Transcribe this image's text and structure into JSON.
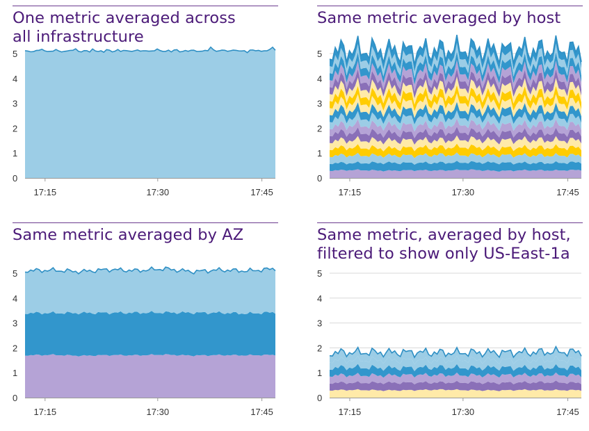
{
  "chart_data": [
    {
      "type": "area",
      "title": "One metric averaged across all infrastructure",
      "x_ticks": [
        "17:15",
        "17:30",
        "17:45"
      ],
      "y_ticks": [
        0,
        1,
        2,
        3,
        4,
        5
      ],
      "ylim": [
        0,
        5.4
      ],
      "stacked": true,
      "grid": true,
      "series": [
        {
          "color": "#9ccde6",
          "values": [
            5.08,
            5.12,
            5.05,
            5.15,
            5.1,
            5.18,
            5.06,
            5.12,
            5.09,
            5.16,
            5.04,
            5.1,
            5.14,
            5.08,
            5.2,
            5.07,
            5.11,
            5.13,
            5.05,
            5.17,
            5.09,
            5.12,
            5.06,
            5.15,
            5.1,
            5.08,
            5.18,
            5.05,
            5.13,
            5.11,
            5.09,
            5.16,
            5.07,
            5.12,
            5.1,
            5.14,
            5.06,
            5.19,
            5.08,
            5.11,
            5.13,
            5.05,
            5.17,
            5.1,
            5.09,
            5.12,
            5.07,
            5.15,
            5.11,
            5.08,
            5.13,
            5.06,
            5.3,
            5.09,
            5.12,
            5.1,
            5.14,
            5.07,
            5.18,
            5.11,
            5.08,
            5.13,
            5.05,
            5.16,
            5.1,
            5.12,
            5.09,
            5.15,
            5.07,
            5.28,
            5.11
          ]
        }
      ]
    },
    {
      "type": "area",
      "title": "Same metric averaged by host",
      "x_ticks": [
        "17:15",
        "17:30",
        "17:45"
      ],
      "y_ticks": [
        0,
        1,
        2,
        3,
        4,
        5
      ],
      "ylim": [
        0,
        5.4
      ],
      "stacked": true,
      "grid": true,
      "series": [
        {
          "color": "#b5a3d6",
          "values": [
            0.3,
            0.32,
            0.29,
            0.31,
            0.3,
            0.33,
            0.28,
            0.31,
            0.3,
            0.32
          ]
        },
        {
          "color": "#3296cc",
          "values": [
            0.3,
            0.28,
            0.32,
            0.29,
            0.31,
            0.3,
            0.33,
            0.29,
            0.3,
            0.31
          ]
        },
        {
          "color": "#9ccde6",
          "values": [
            0.3,
            0.31,
            0.29,
            0.3,
            0.32,
            0.29,
            0.3,
            0.31,
            0.3,
            0.29
          ]
        },
        {
          "color": "#ffcc00",
          "values": [
            0.3,
            0.32,
            0.28,
            0.31,
            0.3,
            0.33,
            0.29,
            0.3,
            0.32,
            0.3
          ]
        },
        {
          "color": "#ffeaa8",
          "values": [
            0.3,
            0.29,
            0.31,
            0.3,
            0.28,
            0.31,
            0.3,
            0.32,
            0.29,
            0.3
          ]
        },
        {
          "color": "#8a70b8",
          "values": [
            0.3,
            0.31,
            0.3,
            0.29,
            0.32,
            0.3,
            0.31,
            0.29,
            0.3,
            0.31
          ]
        },
        {
          "color": "#b5a3d6",
          "values": [
            0.3,
            0.3,
            0.31,
            0.3,
            0.29,
            0.31,
            0.3,
            0.3,
            0.31,
            0.29
          ]
        },
        {
          "color": "#9ccde6",
          "values": [
            0.3,
            0.29,
            0.3,
            0.32,
            0.3,
            0.29,
            0.31,
            0.3,
            0.29,
            0.31
          ]
        },
        {
          "color": "#3296cc",
          "values": [
            0.3,
            0.32,
            0.3,
            0.29,
            0.31,
            0.3,
            0.29,
            0.32,
            0.3,
            0.3
          ]
        },
        {
          "color": "#ffeaa8",
          "values": [
            0.3,
            0.3,
            0.29,
            0.31,
            0.3,
            0.32,
            0.3,
            0.29,
            0.31,
            0.3
          ]
        },
        {
          "color": "#ffcc00",
          "values": [
            0.3,
            0.29,
            0.32,
            0.3,
            0.31,
            0.29,
            0.3,
            0.32,
            0.3,
            0.31
          ]
        },
        {
          "color": "#ffeaa8",
          "values": [
            0.3,
            0.31,
            0.3,
            0.29,
            0.3,
            0.31,
            0.32,
            0.3,
            0.29,
            0.3
          ]
        },
        {
          "color": "#8a70b8",
          "values": [
            0.3,
            0.3,
            0.31,
            0.3,
            0.29,
            0.3,
            0.31,
            0.3,
            0.32,
            0.29
          ]
        },
        {
          "color": "#b5a3d6",
          "values": [
            0.3,
            0.29,
            0.3,
            0.31,
            0.3,
            0.29,
            0.3,
            0.31,
            0.3,
            0.3
          ]
        },
        {
          "color": "#3296cc",
          "values": [
            0.3,
            0.32,
            0.29,
            0.3,
            0.31,
            0.3,
            0.29,
            0.3,
            0.31,
            0.3
          ]
        },
        {
          "color": "#9ccde6",
          "values": [
            0.3,
            0.3,
            0.31,
            0.29,
            0.3,
            0.32,
            0.3,
            0.29,
            0.3,
            0.31
          ]
        },
        {
          "color": "#3296cc",
          "values": [
            0.3,
            0.29,
            0.3,
            0.31,
            0.3,
            0.29,
            0.31,
            0.3,
            0.3,
            0.29
          ]
        }
      ]
    },
    {
      "type": "area",
      "title": "Same metric averaged by AZ",
      "x_ticks": [
        "17:15",
        "17:30",
        "17:45"
      ],
      "y_ticks": [
        0,
        1,
        2,
        3,
        4,
        5
      ],
      "ylim": [
        0,
        5.4
      ],
      "stacked": true,
      "grid": true,
      "series": [
        {
          "color": "#b5a3d6",
          "values": [
            1.7,
            1.72,
            1.68,
            1.71,
            1.7,
            1.73,
            1.69,
            1.71,
            1.7,
            1.72
          ]
        },
        {
          "color": "#3296cc",
          "values": [
            1.7,
            1.68,
            1.72,
            1.7,
            1.71,
            1.69,
            1.72,
            1.7,
            1.68,
            1.71
          ]
        },
        {
          "color": "#9ccde6",
          "values": [
            1.7,
            1.72,
            1.66,
            1.74,
            1.69,
            1.76,
            1.65,
            1.72,
            1.71,
            1.75
          ]
        }
      ]
    },
    {
      "type": "area",
      "title": "Same metric, averaged by host, filtered to show only US-East-1a",
      "x_ticks": [
        "17:15",
        "17:30",
        "17:45"
      ],
      "y_ticks": [
        0,
        1,
        2,
        3,
        4,
        5
      ],
      "ylim": [
        0,
        5.4
      ],
      "stacked": true,
      "grid": true,
      "series": [
        {
          "color": "#ffeaa8",
          "values": [
            0.3,
            0.31,
            0.29,
            0.3,
            0.32,
            0.3,
            0.29,
            0.31,
            0.3,
            0.3
          ]
        },
        {
          "color": "#8a70b8",
          "values": [
            0.3,
            0.29,
            0.31,
            0.3,
            0.29,
            0.31,
            0.3,
            0.3,
            0.32,
            0.29
          ]
        },
        {
          "color": "#b5a3d6",
          "values": [
            0.3,
            0.3,
            0.29,
            0.31,
            0.3,
            0.29,
            0.31,
            0.3,
            0.29,
            0.31
          ]
        },
        {
          "color": "#3296cc",
          "values": [
            0.3,
            0.32,
            0.3,
            0.29,
            0.31,
            0.3,
            0.31,
            0.29,
            0.3,
            0.31
          ]
        },
        {
          "color": "#9ccde6",
          "values": [
            0.3,
            0.29,
            0.32,
            0.3,
            0.28,
            0.32,
            0.29,
            0.31,
            0.3,
            0.32
          ]
        },
        {
          "color": "#9ccde6",
          "values": [
            0.3,
            0.31,
            0.3,
            0.32,
            0.3,
            0.29,
            0.31,
            0.3,
            0.33,
            0.3
          ]
        }
      ]
    }
  ]
}
